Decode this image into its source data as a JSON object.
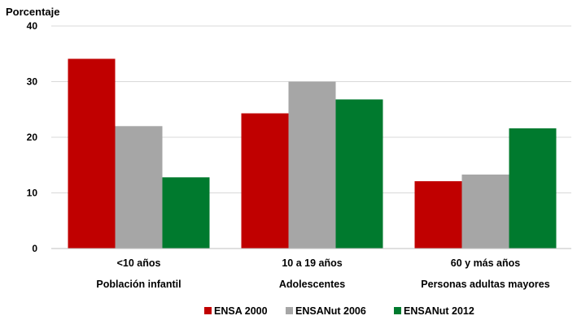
{
  "chart_data": {
    "type": "bar",
    "ylabel": "Porcentaje",
    "ylim": [
      0,
      40
    ],
    "yticks": [
      "0",
      "10",
      "20",
      "30",
      "40"
    ],
    "grid": true,
    "legend_position": "bottom",
    "categories": [
      "<10 años",
      "10 a 19 años",
      "60 y más años"
    ],
    "category_sublabels": [
      "Población infantil",
      "Adolescentes",
      "Personas adultas mayores"
    ],
    "series": [
      {
        "name": "ENSA 2000",
        "color": "#c00000",
        "values": [
          34.1,
          24.3,
          12.1
        ]
      },
      {
        "name": "ENSANut 2006",
        "color": "#a6a6a6",
        "values": [
          22.0,
          30.0,
          13.3
        ]
      },
      {
        "name": "ENSANut 2012",
        "color": "#007a2e",
        "values": [
          12.8,
          26.8,
          21.6
        ]
      }
    ]
  }
}
